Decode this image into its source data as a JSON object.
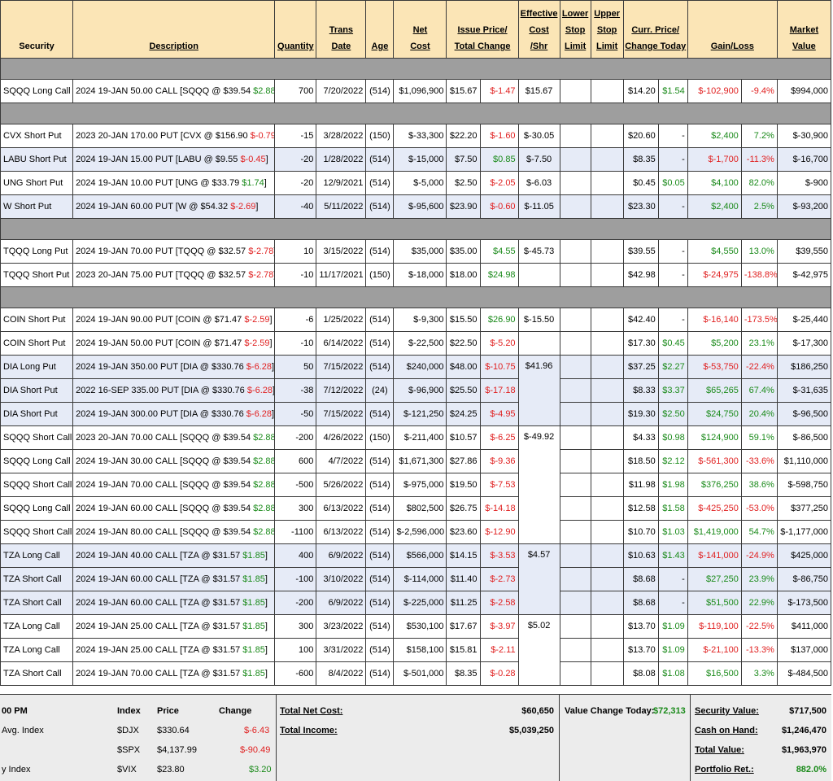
{
  "headers": {
    "security": "Security",
    "description": "Description",
    "quantity": "Quantity",
    "trans_date_1": "Trans",
    "trans_date_2": "Date",
    "age": "Age",
    "net_cost_1": "Net",
    "net_cost_2": "Cost",
    "issue_price_1": "Issue Price/",
    "issue_price_2": "Total Change",
    "eff_cost_1": "Effective",
    "eff_cost_2": "Cost",
    "eff_cost_3": "/Shr",
    "lower_stop_1": "Lower",
    "lower_stop_2": "Stop",
    "lower_stop_3": "Limit",
    "upper_stop_1": "Upper",
    "upper_stop_2": "Stop",
    "upper_stop_3": "Limit",
    "curr_price_1": "Curr. Price/",
    "curr_price_2": "Change Today",
    "gain_loss": "Gain/Loss",
    "market_value_1": "Market",
    "market_value_2": "Value"
  },
  "rows": [
    {
      "sec": "SQQQ Long Call",
      "desc": "2024 19-JAN 50.00 CALL [SQQQ @ $39.54 ",
      "dchg": "$2.88",
      "dsign": "pos",
      "qty": "700",
      "date": "7/20/2022",
      "age": "(514)",
      "net": "$1,096,900",
      "issue": "$15.67",
      "tchg": "$-1.47",
      "tsign": "neg",
      "eff": "$15.67",
      "curr": "$14.20",
      "today": "$1.54",
      "todsign": "pos",
      "gl": "$-102,900",
      "glsign": "neg",
      "glp": "-9.4%",
      "mv": "$994,000"
    },
    {
      "sec": "CVX Short Put",
      "desc": "2023 20-JAN 170.00 PUT [CVX @ $156.90 ",
      "dchg": "$-0.79",
      "dsign": "neg",
      "qty": "-15",
      "date": "3/28/2022",
      "age": "(150)",
      "net": "$-33,300",
      "issue": "$22.20",
      "tchg": "$-1.60",
      "tsign": "neg",
      "eff": "$-30.05",
      "curr": "$20.60",
      "today": "-",
      "todsign": "",
      "gl": "$2,400",
      "glsign": "pos",
      "glp": "7.2%",
      "mv": "$-30,900"
    },
    {
      "sec": "LABU Short Put",
      "desc": "2024 19-JAN 15.00 PUT [LABU @ $9.55 ",
      "dchg": "$-0.45",
      "dsign": "neg",
      "qty": "-20",
      "date": "1/28/2022",
      "age": "(514)",
      "net": "$-15,000",
      "issue": "$7.50",
      "tchg": "$0.85",
      "tsign": "pos",
      "eff": "$-7.50",
      "curr": "$8.35",
      "today": "-",
      "todsign": "",
      "gl": "$-1,700",
      "glsign": "neg",
      "glp": "-11.3%",
      "mv": "$-16,700"
    },
    {
      "sec": "UNG Short Put",
      "desc": "2024 19-JAN 10.00 PUT [UNG @ $33.79 ",
      "dchg": "$1.74",
      "dsign": "pos",
      "qty": "-20",
      "date": "12/9/2021",
      "age": "(514)",
      "net": "$-5,000",
      "issue": "$2.50",
      "tchg": "$-2.05",
      "tsign": "neg",
      "eff": "$-6.03",
      "curr": "$0.45",
      "today": "$0.05",
      "todsign": "pos",
      "gl": "$4,100",
      "glsign": "pos",
      "glp": "82.0%",
      "mv": "$-900"
    },
    {
      "sec": "W Short Put",
      "desc": "2024 19-JAN 60.00 PUT [W @ $54.32 ",
      "dchg": "$-2.69",
      "dsign": "neg",
      "qty": "-40",
      "date": "5/11/2022",
      "age": "(514)",
      "net": "$-95,600",
      "issue": "$23.90",
      "tchg": "$-0.60",
      "tsign": "neg",
      "eff": "$-11.05",
      "curr": "$23.30",
      "today": "-",
      "todsign": "",
      "gl": "$2,400",
      "glsign": "pos",
      "glp": "2.5%",
      "mv": "$-93,200"
    },
    {
      "sec": "TQQQ Long Put",
      "desc": "2024 19-JAN 70.00 PUT [TQQQ @ $32.57 ",
      "dchg": "$-2.78",
      "dsign": "neg",
      "qty": "10",
      "date": "3/15/2022",
      "age": "(514)",
      "net": "$35,000",
      "issue": "$35.00",
      "tchg": "$4.55",
      "tsign": "pos",
      "eff": "$-45.73",
      "curr": "$39.55",
      "today": "-",
      "todsign": "",
      "gl": "$4,550",
      "glsign": "pos",
      "glp": "13.0%",
      "mv": "$39,550"
    },
    {
      "sec": "TQQQ Short Put",
      "desc": "2023 20-JAN 75.00 PUT [TQQQ @ $32.57 ",
      "dchg": "$-2.78",
      "dsign": "neg",
      "qty": "-10",
      "date": "11/17/2021",
      "age": "(150)",
      "net": "$-18,000",
      "issue": "$18.00",
      "tchg": "$24.98",
      "tsign": "pos",
      "eff": "",
      "curr": "$42.98",
      "today": "-",
      "todsign": "",
      "gl": "$-24,975",
      "glsign": "neg",
      "glp": "-138.8%",
      "mv": "$-42,975"
    },
    {
      "sec": "COIN Short Put",
      "desc": "2024 19-JAN 90.00 PUT [COIN @ $71.47 ",
      "dchg": "$-2.59",
      "dsign": "neg",
      "qty": "-6",
      "date": "1/25/2022",
      "age": "(514)",
      "net": "$-9,300",
      "issue": "$15.50",
      "tchg": "$26.90",
      "tsign": "pos",
      "eff": "$-15.50",
      "curr": "$42.40",
      "today": "-",
      "todsign": "",
      "gl": "$-16,140",
      "glsign": "neg",
      "glp": "-173.5%",
      "mv": "$-25,440"
    },
    {
      "sec": "COIN Short Put",
      "desc": "2024 19-JAN 50.00 PUT [COIN @ $71.47 ",
      "dchg": "$-2.59",
      "dsign": "neg",
      "qty": "-10",
      "date": "6/14/2022",
      "age": "(514)",
      "net": "$-22,500",
      "issue": "$22.50",
      "tchg": "$-5.20",
      "tsign": "neg",
      "eff": "",
      "curr": "$17.30",
      "today": "$0.45",
      "todsign": "pos",
      "gl": "$5,200",
      "glsign": "pos",
      "glp": "23.1%",
      "mv": "$-17,300"
    },
    {
      "sec": "DIA Long Put",
      "desc": "2024 19-JAN 350.00 PUT [DIA @ $330.76 ",
      "dchg": "$-6.28",
      "dsign": "neg",
      "qty": "50",
      "date": "7/15/2022",
      "age": "(514)",
      "net": "$240,000",
      "issue": "$48.00",
      "tchg": "$-10.75",
      "tsign": "neg",
      "eff": "$41.96",
      "curr": "$37.25",
      "today": "$2.27",
      "todsign": "pos",
      "gl": "$-53,750",
      "glsign": "neg",
      "glp": "-22.4%",
      "mv": "$186,250"
    },
    {
      "sec": "DIA Short Put",
      "desc": "2022 16-SEP 335.00 PUT [DIA @ $330.76 ",
      "dchg": "$-6.28",
      "dsign": "neg",
      "qty": "-38",
      "date": "7/12/2022",
      "age": "(24)",
      "net": "$-96,900",
      "issue": "$25.50",
      "tchg": "$-17.18",
      "tsign": "neg",
      "eff": "",
      "curr": "$8.33",
      "today": "$3.37",
      "todsign": "pos",
      "gl": "$65,265",
      "glsign": "pos",
      "glp": "67.4%",
      "mv": "$-31,635"
    },
    {
      "sec": "DIA Short Put",
      "desc": "2024 19-JAN 300.00 PUT [DIA @ $330.76 ",
      "dchg": "$-6.28",
      "dsign": "neg",
      "qty": "-50",
      "date": "7/15/2022",
      "age": "(514)",
      "net": "$-121,250",
      "issue": "$24.25",
      "tchg": "$-4.95",
      "tsign": "neg",
      "eff": "",
      "curr": "$19.30",
      "today": "$2.50",
      "todsign": "pos",
      "gl": "$24,750",
      "glsign": "pos",
      "glp": "20.4%",
      "mv": "$-96,500"
    },
    {
      "sec": "SQQQ Short Call",
      "desc": "2023 20-JAN 70.00 CALL [SQQQ @ $39.54 ",
      "dchg": "$2.88",
      "dsign": "pos",
      "qty": "-200",
      "date": "4/26/2022",
      "age": "(150)",
      "net": "$-211,400",
      "issue": "$10.57",
      "tchg": "$-6.25",
      "tsign": "neg",
      "eff": "$-49.92",
      "curr": "$4.33",
      "today": "$0.98",
      "todsign": "pos",
      "gl": "$124,900",
      "glsign": "pos",
      "glp": "59.1%",
      "mv": "$-86,500"
    },
    {
      "sec": "SQQQ Long Call",
      "desc": "2024 19-JAN 30.00 CALL [SQQQ @ $39.54 ",
      "dchg": "$2.88",
      "dsign": "pos",
      "qty": "600",
      "date": "4/7/2022",
      "age": "(514)",
      "net": "$1,671,300",
      "issue": "$27.86",
      "tchg": "$-9.36",
      "tsign": "neg",
      "eff": "",
      "curr": "$18.50",
      "today": "$2.12",
      "todsign": "pos",
      "gl": "$-561,300",
      "glsign": "neg",
      "glp": "-33.6%",
      "mv": "$1,110,000"
    },
    {
      "sec": "SQQQ Short Call",
      "desc": "2024 19-JAN 70.00 CALL [SQQQ @ $39.54 ",
      "dchg": "$2.88",
      "dsign": "pos",
      "qty": "-500",
      "date": "5/26/2022",
      "age": "(514)",
      "net": "$-975,000",
      "issue": "$19.50",
      "tchg": "$-7.53",
      "tsign": "neg",
      "eff": "",
      "curr": "$11.98",
      "today": "$1.98",
      "todsign": "pos",
      "gl": "$376,250",
      "glsign": "pos",
      "glp": "38.6%",
      "mv": "$-598,750"
    },
    {
      "sec": "SQQQ Long Call",
      "desc": "2024 19-JAN 60.00 CALL [SQQQ @ $39.54 ",
      "dchg": "$2.88",
      "dsign": "pos",
      "qty": "300",
      "date": "6/13/2022",
      "age": "(514)",
      "net": "$802,500",
      "issue": "$26.75",
      "tchg": "$-14.18",
      "tsign": "neg",
      "eff": "",
      "curr": "$12.58",
      "today": "$1.58",
      "todsign": "pos",
      "gl": "$-425,250",
      "glsign": "neg",
      "glp": "-53.0%",
      "mv": "$377,250"
    },
    {
      "sec": "SQQQ Short Call",
      "desc": "2024 19-JAN 80.00 CALL [SQQQ @ $39.54 ",
      "dchg": "$2.88",
      "dsign": "pos",
      "qty": "-1100",
      "date": "6/13/2022",
      "age": "(514)",
      "net": "$-2,596,000",
      "issue": "$23.60",
      "tchg": "$-12.90",
      "tsign": "neg",
      "eff": "",
      "curr": "$10.70",
      "today": "$1.03",
      "todsign": "pos",
      "gl": "$1,419,000",
      "glsign": "pos",
      "glp": "54.7%",
      "mv": "$-1,177,000"
    },
    {
      "sec": "TZA Long Call",
      "desc": "2024 19-JAN 40.00 CALL [TZA @ $31.57 ",
      "dchg": "$1.85",
      "dsign": "pos",
      "qty": "400",
      "date": "6/9/2022",
      "age": "(514)",
      "net": "$566,000",
      "issue": "$14.15",
      "tchg": "$-3.53",
      "tsign": "neg",
      "eff": "$4.57",
      "curr": "$10.63",
      "today": "$1.43",
      "todsign": "pos",
      "gl": "$-141,000",
      "glsign": "neg",
      "glp": "-24.9%",
      "mv": "$425,000"
    },
    {
      "sec": "TZA Short Call",
      "desc": "2024 19-JAN 60.00 CALL [TZA @ $31.57 ",
      "dchg": "$1.85",
      "dsign": "pos",
      "qty": "-100",
      "date": "3/10/2022",
      "age": "(514)",
      "net": "$-114,000",
      "issue": "$11.40",
      "tchg": "$-2.73",
      "tsign": "neg",
      "eff": "",
      "curr": "$8.68",
      "today": "-",
      "todsign": "",
      "gl": "$27,250",
      "glsign": "pos",
      "glp": "23.9%",
      "mv": "$-86,750"
    },
    {
      "sec": "TZA Short Call",
      "desc": "2024 19-JAN 60.00 CALL [TZA @ $31.57 ",
      "dchg": "$1.85",
      "dsign": "pos",
      "qty": "-200",
      "date": "6/9/2022",
      "age": "(514)",
      "net": "$-225,000",
      "issue": "$11.25",
      "tchg": "$-2.58",
      "tsign": "neg",
      "eff": "",
      "curr": "$8.68",
      "today": "-",
      "todsign": "",
      "gl": "$51,500",
      "glsign": "pos",
      "glp": "22.9%",
      "mv": "$-173,500"
    },
    {
      "sec": "TZA Long Call",
      "desc": "2024 19-JAN 25.00 CALL [TZA @ $31.57 ",
      "dchg": "$1.85",
      "dsign": "pos",
      "qty": "300",
      "date": "3/23/2022",
      "age": "(514)",
      "net": "$530,100",
      "issue": "$17.67",
      "tchg": "$-3.97",
      "tsign": "neg",
      "eff": "$5.02",
      "curr": "$13.70",
      "today": "$1.09",
      "todsign": "pos",
      "gl": "$-119,100",
      "glsign": "neg",
      "glp": "-22.5%",
      "mv": "$411,000"
    },
    {
      "sec": "TZA Long Call",
      "desc": "2024 19-JAN 25.00 CALL [TZA @ $31.57 ",
      "dchg": "$1.85",
      "dsign": "pos",
      "qty": "100",
      "date": "3/31/2022",
      "age": "(514)",
      "net": "$158,100",
      "issue": "$15.81",
      "tchg": "$-2.11",
      "tsign": "neg",
      "eff": "",
      "curr": "$13.70",
      "today": "$1.09",
      "todsign": "pos",
      "gl": "$-21,100",
      "glsign": "neg",
      "glp": "-13.3%",
      "mv": "$137,000"
    },
    {
      "sec": "TZA Short Call",
      "desc": "2024 19-JAN 70.00 CALL [TZA @ $31.57 ",
      "dchg": "$1.85",
      "dsign": "pos",
      "qty": "-600",
      "date": "8/4/2022",
      "age": "(514)",
      "net": "$-501,000",
      "issue": "$8.35",
      "tchg": "$-0.28",
      "tsign": "neg",
      "eff": "",
      "curr": "$8.08",
      "today": "$1.08",
      "todsign": "pos",
      "gl": "$16,500",
      "glsign": "pos",
      "glp": "3.3%",
      "mv": "$-484,500"
    }
  ],
  "footer": {
    "time_label": "00 PM",
    "index_header": "Index",
    "price_header": "Price",
    "change_header": "Change",
    "indices": [
      {
        "name": "Avg. Index",
        "sym": "$DJX",
        "price": "$330.64",
        "chg": "$-6.43",
        "sign": "neg"
      },
      {
        "name": "",
        "sym": "$SPX",
        "price": "$4,137.99",
        "chg": "$-90.49",
        "sign": "neg"
      },
      {
        "name": "y Index",
        "sym": "$VIX",
        "price": "$23.80",
        "chg": "$3.20",
        "sign": "pos"
      }
    ],
    "total_net_cost_label": "Total Net Cost:",
    "total_net_cost": "$60,650",
    "total_income_label": "Total Income:",
    "total_income": "$5,039,250",
    "value_change_label": "Value Change Today:",
    "value_change": "$72,313",
    "security_value_label": "Security Value:",
    "security_value": "$717,500",
    "cash_label": "Cash on Hand:",
    "cash": "$1,246,470",
    "total_value_label": "Total Value:",
    "total_value": "$1,963,970",
    "portfolio_ret_label": "Portfolio Ret.:",
    "portfolio_ret": "882.0%"
  }
}
